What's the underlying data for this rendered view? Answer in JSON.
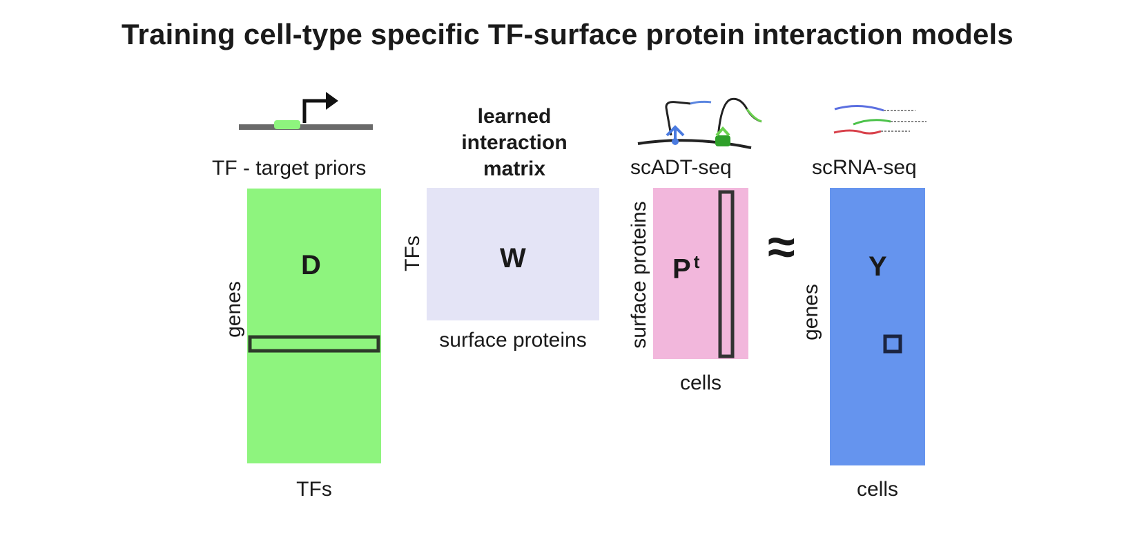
{
  "title": "Training cell-type specific TF-surface protein interaction models",
  "colors": {
    "matrix_d": "#8ef47e",
    "matrix_w": "#e4e4f6",
    "matrix_p": "#f2b7dc",
    "matrix_y": "#6594ee",
    "outline": "#2e2e2e"
  },
  "matrix_d": {
    "header": "TF - target priors",
    "letter": "D",
    "row_label": "genes",
    "col_label": "TFs"
  },
  "matrix_w": {
    "header_line1": "learned",
    "header_line2": "interaction",
    "header_line3": "matrix",
    "letter": "W",
    "row_label": "TFs",
    "col_label": "surface proteins"
  },
  "matrix_p": {
    "header": "scADT-seq",
    "letter": "P",
    "superscript": "t",
    "row_label": "surface proteins",
    "col_label": "cells"
  },
  "approx_symbol": "≈",
  "matrix_y": {
    "header": "scRNA-seq",
    "letter": "Y",
    "row_label": "genes",
    "col_label": "cells"
  },
  "icons": [
    "promoter-arrow-icon",
    "antibody-tag-icon",
    "rna-strands-icon"
  ]
}
